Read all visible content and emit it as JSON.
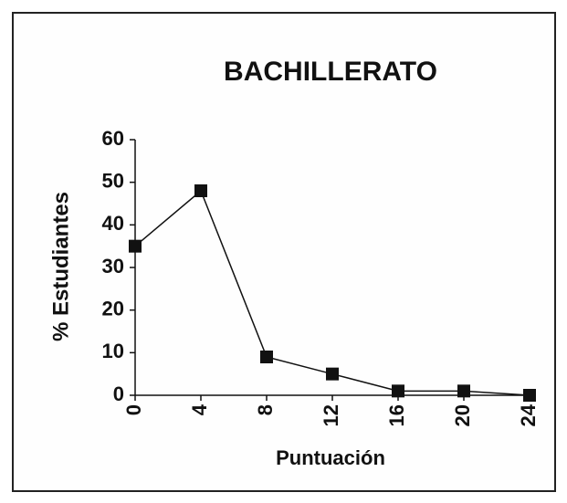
{
  "chart_data": {
    "type": "line",
    "title": "BACHILLERATO",
    "x_label": "Puntuación",
    "y_label": "% Estudiantes",
    "x": [
      0,
      4,
      8,
      12,
      16,
      20,
      24
    ],
    "series": [
      {
        "name": "BACHILLERATO",
        "color": "#111111",
        "values": [
          35,
          48,
          9,
          5,
          1,
          1,
          0
        ]
      }
    ],
    "xlim": [
      0,
      24
    ],
    "xticks": [
      0,
      4,
      8,
      12,
      16,
      20,
      24
    ],
    "ylim": [
      0,
      60
    ],
    "yticks": [
      0,
      10,
      20,
      30,
      40,
      50,
      60
    ]
  }
}
